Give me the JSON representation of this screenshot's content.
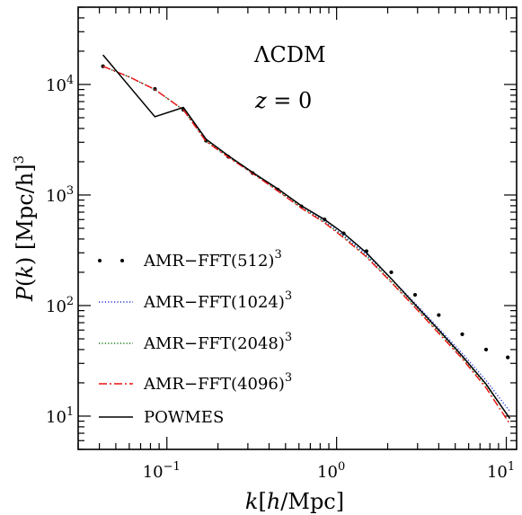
{
  "chart_data": {
    "type": "line",
    "scale": {
      "x": "log",
      "y": "log"
    },
    "xlim": [
      0.03,
      11.5
    ],
    "ylim": [
      5,
      50000
    ],
    "xlabel_parts": [
      "k",
      "[",
      "h",
      "/Mpc]"
    ],
    "ylabel_parts": [
      "P",
      "(",
      "k",
      ")",
      " [Mpc/h]",
      "3"
    ],
    "annotation_model": "ΛCDM",
    "annotation_z": {
      "var": "z",
      "eq": " = ",
      "val": "0"
    },
    "x_ticks": [
      {
        "value": 0.1,
        "base": "10",
        "exp": "−1"
      },
      {
        "value": 1,
        "base": "10",
        "exp": "0"
      },
      {
        "value": 10,
        "base": "10",
        "exp": "1"
      }
    ],
    "y_ticks": [
      {
        "value": 10,
        "base": "10",
        "exp": "1"
      },
      {
        "value": 100,
        "base": "10",
        "exp": "2"
      },
      {
        "value": 1000,
        "base": "10",
        "exp": "3"
      },
      {
        "value": 10000,
        "base": "10",
        "exp": "4"
      }
    ],
    "legend_placement": "lower-left",
    "series": [
      {
        "name": "AMR−FFT(512)",
        "name_exp": "3",
        "style": "dots",
        "color": "#000000",
        "x": [
          0.042,
          0.085,
          0.125,
          0.17,
          0.23,
          0.32,
          0.45,
          0.62,
          0.85,
          1.1,
          1.5,
          2.1,
          2.9,
          4.0,
          5.5,
          7.6,
          10.2
        ],
        "y": [
          14600,
          9100,
          5900,
          3100,
          2220,
          1580,
          1120,
          790,
          600,
          450,
          310,
          200,
          125,
          82,
          55,
          40,
          34
        ]
      },
      {
        "name": "AMR−FFT(1024)",
        "name_exp": "3",
        "style": "dotted",
        "color": "#2233dd",
        "x": [
          0.042,
          0.06,
          0.085,
          0.125,
          0.17,
          0.23,
          0.32,
          0.45,
          0.62,
          0.85,
          1.1,
          1.5,
          2.1,
          2.9,
          4.0,
          5.5,
          7.6,
          10.5
        ],
        "y": [
          14600,
          11700,
          9000,
          5900,
          3100,
          2220,
          1580,
          1110,
          780,
          580,
          430,
          290,
          175,
          105,
          62,
          37,
          21,
          11
        ]
      },
      {
        "name": "AMR−FFT(2048)",
        "name_exp": "3",
        "style": "dotted",
        "color": "#117711",
        "x": [
          0.042,
          0.06,
          0.085,
          0.125,
          0.17,
          0.23,
          0.32,
          0.45,
          0.62,
          0.85,
          1.1,
          1.5,
          2.1,
          2.9,
          4.0,
          5.5,
          7.6,
          10.5
        ],
        "y": [
          14600,
          11700,
          9000,
          5900,
          3100,
          2220,
          1580,
          1100,
          770,
          570,
          420,
          280,
          165,
          98,
          58,
          34,
          19,
          9.5
        ]
      },
      {
        "name": "AMR−FFT(4096)",
        "name_exp": "3",
        "style": "dashdot",
        "color": "#ee1111",
        "x": [
          0.042,
          0.06,
          0.085,
          0.125,
          0.17,
          0.23,
          0.32,
          0.45,
          0.62,
          0.85,
          1.1,
          1.5,
          2.1,
          2.9,
          4.0,
          5.5,
          7.6,
          10.5
        ],
        "y": [
          14600,
          11700,
          9000,
          5900,
          3050,
          2200,
          1570,
          1090,
          760,
          560,
          410,
          275,
          162,
          96,
          56,
          33,
          18,
          8.5
        ]
      },
      {
        "name": "POWMES",
        "name_exp": "",
        "style": "solid",
        "color": "#000000",
        "x": [
          0.042,
          0.085,
          0.125,
          0.17,
          0.23,
          0.32,
          0.45,
          0.62,
          0.85,
          1.1,
          1.5,
          2.1,
          2.9,
          4.0,
          5.5,
          7.6,
          10.5
        ],
        "y": [
          18500,
          5100,
          6200,
          3200,
          2270,
          1600,
          1140,
          800,
          600,
          450,
          300,
          175,
          102,
          60,
          35,
          19.5,
          9.5
        ]
      }
    ]
  }
}
